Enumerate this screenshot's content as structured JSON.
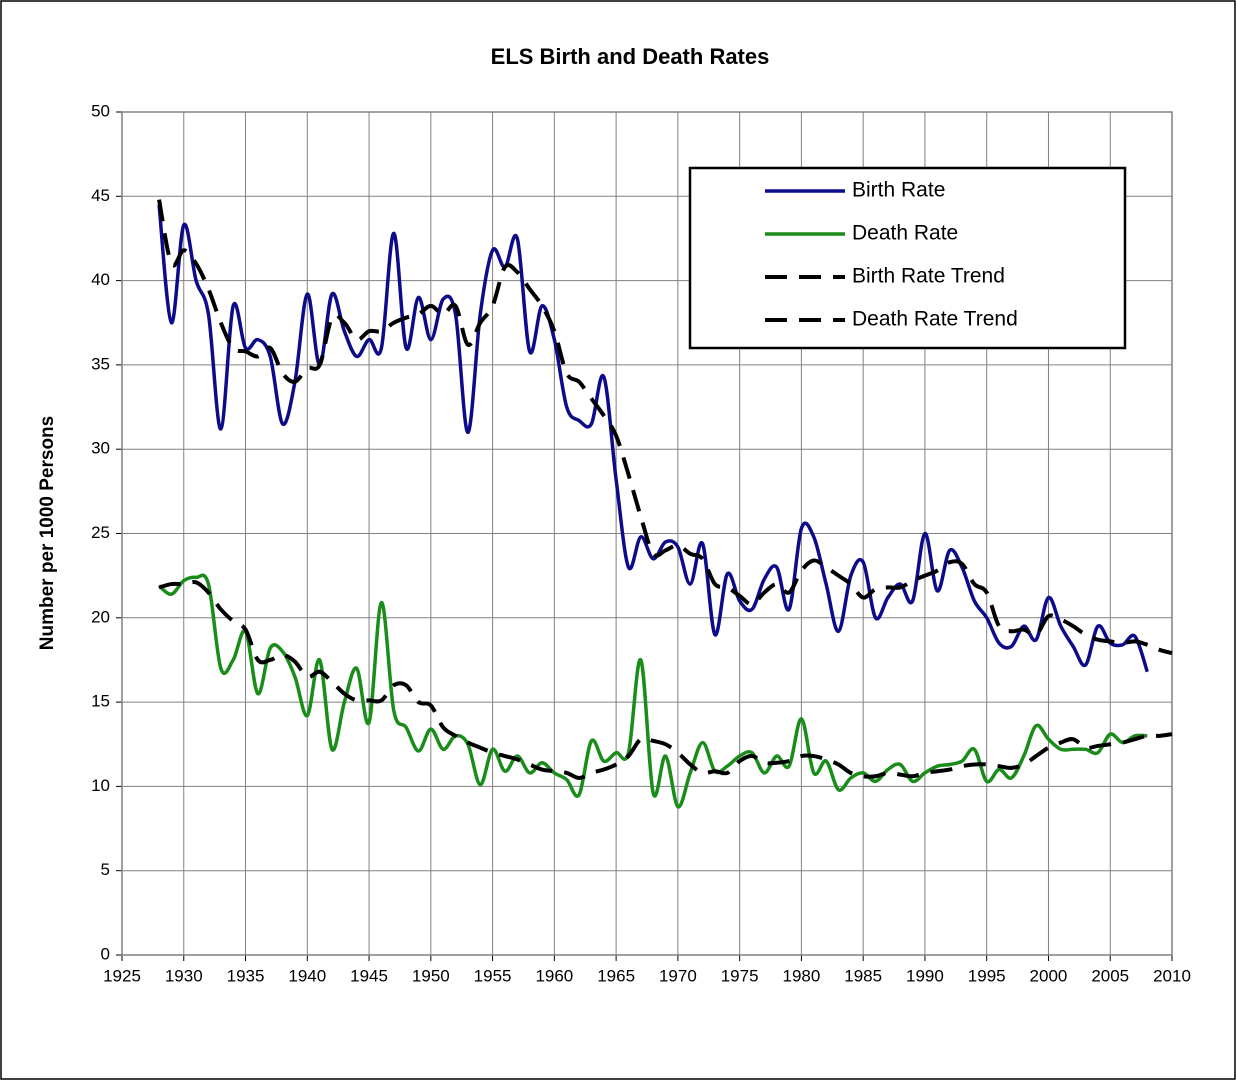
{
  "chart_data": {
    "type": "line",
    "title": "ELS Birth and Death Rates",
    "ylabel": "Number per 1000 Persons",
    "xlim": [
      1925,
      2010
    ],
    "xticks": [
      1925,
      1930,
      1935,
      1940,
      1945,
      1950,
      1955,
      1960,
      1965,
      1970,
      1975,
      1980,
      1985,
      1990,
      1995,
      2000,
      2005,
      2010
    ],
    "ylim": [
      0,
      50
    ],
    "yticks": [
      0,
      5,
      10,
      15,
      20,
      25,
      30,
      35,
      40,
      45,
      50
    ],
    "grid": true,
    "legend": "top-right",
    "series": [
      {
        "name": "Birth Rate",
        "color": "#0c0c8a",
        "dash": false,
        "x": [
          1928,
          1929,
          1930,
          1931,
          1932,
          1933,
          1934,
          1935,
          1936,
          1937,
          1938,
          1939,
          1940,
          1941,
          1942,
          1943,
          1944,
          1945,
          1946,
          1947,
          1948,
          1949,
          1950,
          1951,
          1952,
          1953,
          1954,
          1955,
          1956,
          1957,
          1958,
          1959,
          1960,
          1961,
          1962,
          1963,
          1964,
          1965,
          1966,
          1967,
          1968,
          1969,
          1970,
          1971,
          1972,
          1973,
          1974,
          1975,
          1976,
          1977,
          1978,
          1979,
          1980,
          1981,
          1982,
          1983,
          1984,
          1985,
          1986,
          1987,
          1988,
          1989,
          1990,
          1991,
          1992,
          1993,
          1994,
          1995,
          1996,
          1997,
          1998,
          1999,
          2000,
          2001,
          2002,
          2003,
          2004,
          2005,
          2006,
          2007,
          2008
        ],
        "values": [
          44.5,
          37.5,
          43.3,
          40,
          38,
          31.2,
          38.5,
          36,
          36.5,
          35.5,
          31.5,
          34,
          39.2,
          35,
          39.2,
          37,
          35.5,
          36.5,
          36,
          42.8,
          36,
          39,
          36.5,
          38.9,
          38,
          31,
          38,
          41.8,
          40.8,
          42.5,
          35.8,
          38.5,
          36.5,
          32.5,
          31.7,
          31.5,
          34.3,
          28.2,
          23,
          24.8,
          23.5,
          24.5,
          24.2,
          22,
          24.4,
          19,
          22.6,
          21,
          20.5,
          22.3,
          23,
          20.5,
          25.3,
          24.8,
          22,
          19.2,
          22.5,
          23.3,
          20,
          21.2,
          22,
          21,
          25,
          21.6,
          24,
          23,
          21,
          20,
          18.5,
          18.3,
          19.5,
          18.7,
          21.2,
          19.5,
          18.3,
          17.2,
          19.5,
          18.5,
          18.4,
          18.9,
          16.8
        ]
      },
      {
        "name": "Death Rate",
        "color": "#1a8c1a",
        "dash": false,
        "x": [
          1928,
          1929,
          1930,
          1931,
          1932,
          1933,
          1934,
          1935,
          1936,
          1937,
          1938,
          1939,
          1940,
          1941,
          1942,
          1943,
          1944,
          1945,
          1946,
          1947,
          1948,
          1949,
          1950,
          1951,
          1952,
          1953,
          1954,
          1955,
          1956,
          1957,
          1958,
          1959,
          1960,
          1961,
          1962,
          1963,
          1964,
          1965,
          1966,
          1967,
          1968,
          1969,
          1970,
          1971,
          1972,
          1973,
          1974,
          1975,
          1976,
          1977,
          1978,
          1979,
          1980,
          1981,
          1982,
          1983,
          1984,
          1985,
          1986,
          1987,
          1988,
          1989,
          1990,
          1991,
          1992,
          1993,
          1994,
          1995,
          1996,
          1997,
          1998,
          1999,
          2000,
          2001,
          2002,
          2003,
          2004,
          2005,
          2006,
          2007,
          2008
        ],
        "values": [
          21.9,
          21.4,
          22.2,
          22.4,
          22,
          17,
          17.5,
          19.2,
          15.5,
          18.2,
          18,
          16.5,
          14.2,
          17.5,
          12.2,
          15,
          17,
          13.8,
          20.9,
          14.5,
          13.5,
          12.1,
          13.4,
          12.2,
          13,
          12.5,
          10.1,
          12.2,
          10.9,
          11.8,
          10.8,
          11.4,
          10.8,
          10.4,
          9.5,
          12.7,
          11.5,
          12,
          12,
          17.5,
          9.6,
          11.8,
          8.8,
          10.8,
          12.6,
          10.9,
          11.2,
          11.8,
          12,
          10.8,
          11.8,
          11.2,
          14,
          10.8,
          11.5,
          9.8,
          10.5,
          10.8,
          10.3,
          11,
          11.3,
          10.3,
          10.8,
          11.2,
          11.3,
          11.5,
          12.2,
          10.3,
          11,
          10.5,
          11.8,
          13.6,
          12.8,
          12.2,
          12.2,
          12.2,
          12,
          13.1,
          12.6,
          13,
          13
        ]
      },
      {
        "name": "Birth Rate Trend",
        "color": "#000000",
        "dash": true,
        "x": [
          1928,
          1929,
          1930,
          1931,
          1932,
          1933,
          1934,
          1935,
          1936,
          1937,
          1938,
          1939,
          1940,
          1941,
          1942,
          1943,
          1944,
          1945,
          1946,
          1947,
          1948,
          1949,
          1950,
          1951,
          1952,
          1953,
          1954,
          1955,
          1956,
          1957,
          1958,
          1959,
          1960,
          1961,
          1962,
          1963,
          1964,
          1965,
          1966,
          1967,
          1968,
          1969,
          1970,
          1971,
          1972,
          1973,
          1974,
          1975,
          1976,
          1977,
          1978,
          1979,
          1980,
          1981,
          1982,
          1983,
          1984,
          1985,
          1986,
          1987,
          1988,
          1989,
          1990,
          1991,
          1992,
          1993,
          1994,
          1995,
          1996,
          1997,
          1998,
          1999,
          2000,
          2001,
          2002,
          2003,
          2004,
          2005,
          2006,
          2007,
          2008,
          2009,
          2010
        ],
        "values": [
          44.8,
          41,
          41.8,
          41,
          39.5,
          37.5,
          36,
          35.8,
          35.5,
          36,
          34.5,
          34,
          34.8,
          35,
          37.8,
          37.5,
          36.5,
          37,
          37,
          37.5,
          37.8,
          38,
          38.5,
          38,
          38.5,
          36.2,
          37.5,
          38.5,
          40.8,
          40.5,
          39.5,
          38.5,
          37,
          34.5,
          34,
          33,
          32,
          30.8,
          28.5,
          26,
          23.8,
          24,
          24.3,
          23.8,
          23.5,
          22,
          21.8,
          21.3,
          20.8,
          21.5,
          22,
          21.5,
          22.8,
          23.4,
          23,
          22.5,
          22,
          21.2,
          21.7,
          21.8,
          21.8,
          22.2,
          22.5,
          22.8,
          23.3,
          23.2,
          22,
          21.5,
          19.5,
          19.2,
          19.3,
          19,
          20.1,
          19.9,
          19.5,
          19,
          18.7,
          18.6,
          18.5,
          18.6,
          18.4,
          18.1,
          17.9
        ]
      },
      {
        "name": "Death Rate Trend",
        "color": "#000000",
        "dash": true,
        "x": [
          1928,
          1929,
          1930,
          1931,
          1932,
          1933,
          1934,
          1935,
          1936,
          1937,
          1938,
          1939,
          1940,
          1941,
          1942,
          1943,
          1944,
          1945,
          1946,
          1947,
          1948,
          1949,
          1950,
          1951,
          1952,
          1953,
          1954,
          1955,
          1956,
          1957,
          1958,
          1959,
          1960,
          1961,
          1962,
          1963,
          1964,
          1965,
          1966,
          1967,
          1968,
          1969,
          1970,
          1971,
          1972,
          1973,
          1974,
          1975,
          1976,
          1977,
          1978,
          1979,
          1980,
          1981,
          1982,
          1983,
          1984,
          1985,
          1986,
          1987,
          1988,
          1989,
          1990,
          1991,
          1992,
          1993,
          1994,
          1995,
          1996,
          1997,
          1998,
          1999,
          2000,
          2001,
          2002,
          2003,
          2004,
          2005,
          2006,
          2007,
          2008,
          2009,
          2010
        ],
        "values": [
          21.8,
          22,
          22,
          22.1,
          21.5,
          20.5,
          19.8,
          19.3,
          17.5,
          17.5,
          17.8,
          17.4,
          16.5,
          16.8,
          16.2,
          15.5,
          15.1,
          15.1,
          15.1,
          16,
          16,
          15,
          14.8,
          13.5,
          13,
          12.6,
          12.3,
          12,
          11.8,
          11.6,
          11.3,
          11,
          10.9,
          10.8,
          10.5,
          10.8,
          11,
          11.3,
          11.8,
          12.8,
          12.7,
          12.5,
          12,
          11.3,
          10.8,
          10.9,
          10.8,
          11.5,
          11.8,
          11.4,
          11.4,
          11.5,
          11.8,
          11.8,
          11.6,
          11.3,
          10.8,
          10.6,
          10.6,
          10.8,
          10.7,
          10.6,
          10.8,
          10.9,
          11,
          11.2,
          11.3,
          11.3,
          11.2,
          11.1,
          11.3,
          11.8,
          12.3,
          12.6,
          12.8,
          12.3,
          12.4,
          12.5,
          12.6,
          12.8,
          13,
          13,
          13.1
        ]
      }
    ]
  }
}
